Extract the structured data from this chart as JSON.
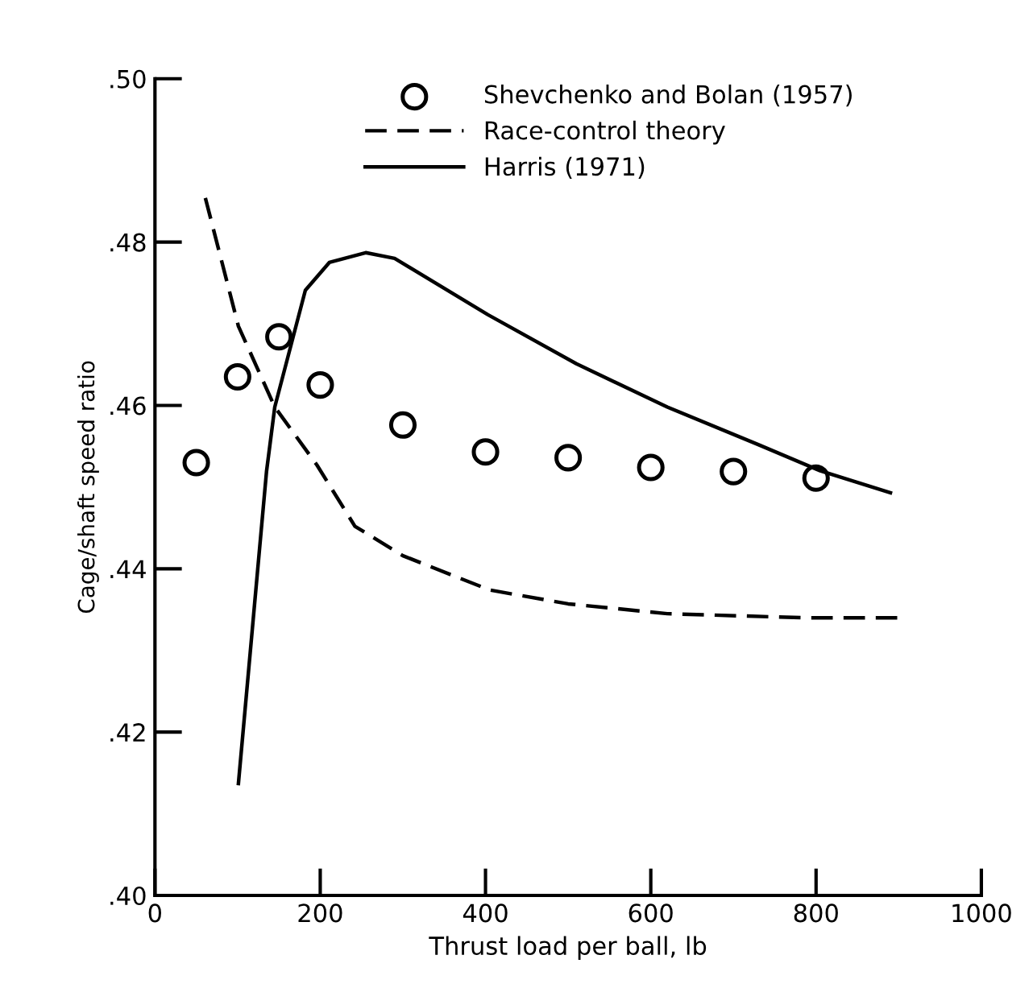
{
  "chart_data": {
    "type": "line",
    "xlabel": "Thrust load per ball, lb",
    "ylabel": "Cage/shaft speed ratio",
    "xlim": [
      0,
      1000
    ],
    "ylim": [
      0.4,
      0.5
    ],
    "xticks": [
      0,
      200,
      400,
      600,
      800,
      1000
    ],
    "yticks": [
      {
        "value": 0.4,
        "label": ".40"
      },
      {
        "value": 0.42,
        "label": ".42"
      },
      {
        "value": 0.44,
        "label": ".44"
      },
      {
        "value": 0.46,
        "label": ".46"
      },
      {
        "value": 0.48,
        "label": ".48"
      },
      {
        "value": 0.5,
        "label": ".50"
      }
    ],
    "grid": false,
    "legend": "top",
    "series": [
      {
        "name": "Shevchenko and Bolan (1957)",
        "type": "scatter",
        "marker": "circle",
        "color": "#000000",
        "x": [
          50,
          100,
          150,
          200,
          300,
          400,
          500,
          600,
          700,
          800
        ],
        "values": [
          0.453,
          0.4635,
          0.4684,
          0.4625,
          0.4576,
          0.4543,
          0.4536,
          0.4524,
          0.4519,
          0.4511
        ]
      },
      {
        "name": "Race-control theory",
        "line_style": "dashed",
        "color": "#000000",
        "x": [
          61,
          101,
          145,
          196,
          242,
          300,
          405,
          500,
          620,
          785,
          900
        ],
        "values": [
          0.4854,
          0.4697,
          0.4598,
          0.4527,
          0.4452,
          0.4416,
          0.4374,
          0.4357,
          0.4345,
          0.434,
          0.434
        ]
      },
      {
        "name": "Harris (1971)",
        "line_style": "solid",
        "color": "#000000",
        "x": [
          101,
          135,
          145,
          182,
          211,
          255,
          290,
          403,
          510,
          620,
          730,
          805,
          890
        ],
        "values": [
          0.4137,
          0.4519,
          0.4598,
          0.4741,
          0.4775,
          0.4787,
          0.478,
          0.4711,
          0.4651,
          0.4598,
          0.4552,
          0.452,
          0.4493
        ]
      }
    ]
  }
}
